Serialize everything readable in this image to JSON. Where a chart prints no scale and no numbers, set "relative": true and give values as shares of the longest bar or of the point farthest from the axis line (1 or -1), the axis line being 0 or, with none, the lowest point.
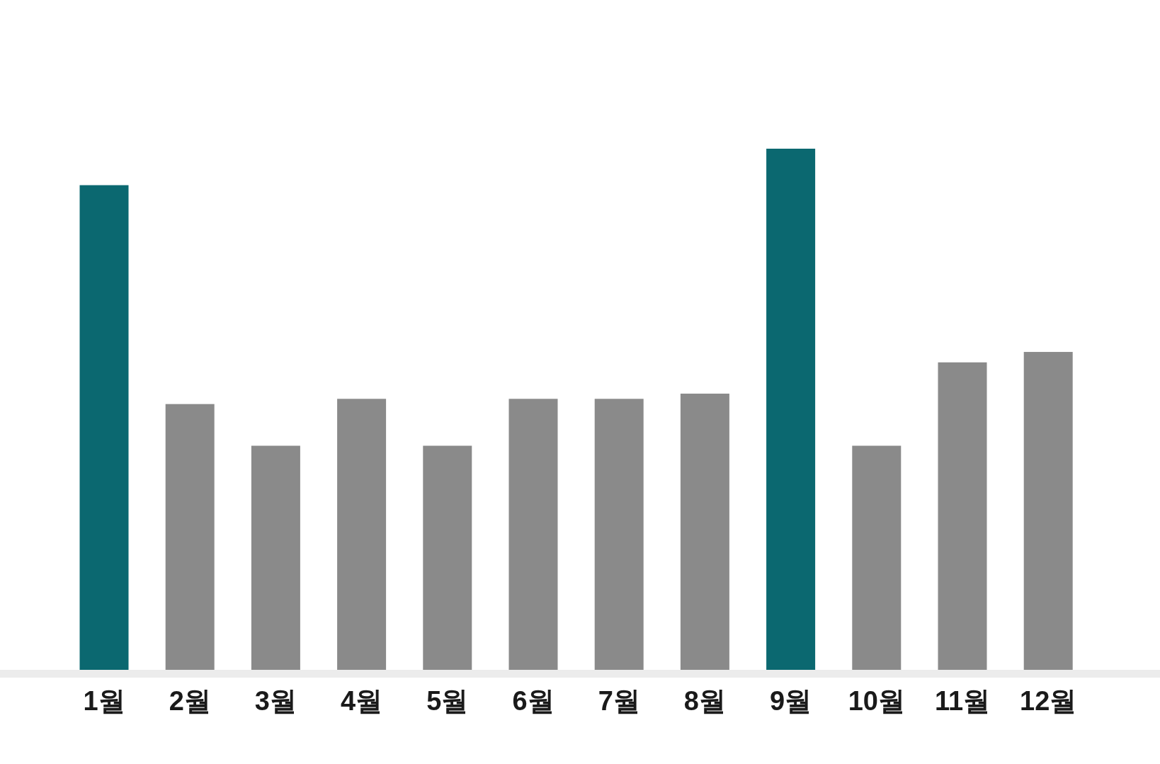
{
  "chart_data": {
    "type": "bar",
    "relative": true,
    "categories": [
      "1월",
      "2월",
      "3월",
      "4월",
      "5월",
      "6월",
      "7월",
      "8월",
      "9월",
      "10월",
      "11월",
      "12월"
    ],
    "values": [
      0.93,
      0.51,
      0.43,
      0.52,
      0.43,
      0.52,
      0.52,
      0.53,
      1,
      0.43,
      0.59,
      0.61
    ],
    "colors": [
      "#0b6870",
      "#8a8a8a",
      "#8a8a8a",
      "#8a8a8a",
      "#8a8a8a",
      "#8a8a8a",
      "#8a8a8a",
      "#8a8a8a",
      "#0b6870",
      "#8a8a8a",
      "#8a8a8a",
      "#8a8a8a"
    ]
  }
}
